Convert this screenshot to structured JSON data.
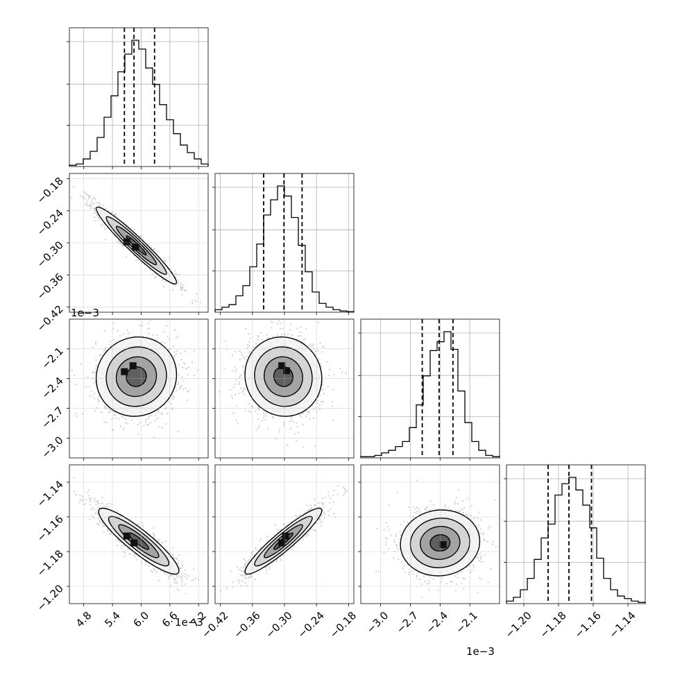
{
  "chart_data": {
    "type": "corner",
    "grid": true,
    "parameters": [
      {
        "range": [
          4.5,
          7.4
        ],
        "ticks": [
          4.8,
          5.4,
          6.0,
          6.6,
          7.2
        ],
        "tick_labels": [
          "4.8",
          "5.4",
          "6.0",
          "6.6",
          "7.2"
        ],
        "offset_label": "1e−3",
        "quantiles": [
          5.65,
          5.85,
          6.28
        ]
      },
      {
        "range": [
          -0.43,
          -0.17
        ],
        "ticks": [
          -0.42,
          -0.36,
          -0.3,
          -0.24,
          -0.18
        ],
        "tick_labels": [
          "−0.42",
          "−0.36",
          "−0.30",
          "−0.24",
          "−0.18"
        ],
        "offset_label": "1e−3",
        "quantiles": [
          -0.339,
          -0.301,
          -0.267
        ]
      },
      {
        "range": [
          -3.2,
          -1.8
        ],
        "ticks": [
          -3.0,
          -2.7,
          -2.4,
          -2.1
        ],
        "tick_labels": [
          "−3.0",
          "−2.7",
          "−2.4",
          "−2.1"
        ],
        "offset_label": "1e−3",
        "quantiles": [
          -2.58,
          -2.41,
          -2.27
        ]
      },
      {
        "range": [
          -1.21,
          -1.13
        ],
        "ticks": [
          -1.2,
          -1.18,
          -1.16,
          -1.14
        ],
        "tick_labels": [
          "−1.20",
          "−1.18",
          "−1.16",
          "−1.14"
        ],
        "offset_label": "",
        "quantiles": [
          -1.186,
          -1.174,
          -1.161
        ]
      }
    ],
    "histograms": [
      [
        0.01,
        0.02,
        0.06,
        0.12,
        0.23,
        0.39,
        0.56,
        0.75,
        0.89,
        1.0,
        0.93,
        0.78,
        0.65,
        0.49,
        0.37,
        0.26,
        0.17,
        0.11,
        0.06,
        0.02
      ],
      [
        0.02,
        0.04,
        0.06,
        0.13,
        0.21,
        0.36,
        0.54,
        0.77,
        0.89,
        1.0,
        0.92,
        0.75,
        0.53,
        0.32,
        0.16,
        0.07,
        0.04,
        0.02,
        0.01,
        0.005
      ],
      [
        0.01,
        0.01,
        0.02,
        0.04,
        0.06,
        0.09,
        0.13,
        0.24,
        0.42,
        0.65,
        0.85,
        0.92,
        1.0,
        0.86,
        0.53,
        0.28,
        0.13,
        0.06,
        0.02,
        0.01
      ],
      [
        0.02,
        0.05,
        0.11,
        0.2,
        0.35,
        0.52,
        0.63,
        0.86,
        0.95,
        1.0,
        0.9,
        0.78,
        0.6,
        0.36,
        0.2,
        0.11,
        0.06,
        0.04,
        0.02,
        0.01
      ]
    ],
    "pairs": [
      {
        "row": 1,
        "col": 0,
        "center": [
          5.9,
          -0.305
        ],
        "std": [
          0.42,
          0.036
        ],
        "rho": -0.96,
        "peaks": [
          [
            5.7,
            -0.298
          ],
          [
            5.88,
            -0.308
          ]
        ]
      },
      {
        "row": 2,
        "col": 0,
        "center": [
          5.9,
          -2.38
        ],
        "std": [
          0.42,
          0.2
        ],
        "rho": 0.05,
        "peaks": [
          [
            5.65,
            -2.33
          ],
          [
            5.83,
            -2.27
          ]
        ]
      },
      {
        "row": 2,
        "col": 1,
        "center": [
          -0.302,
          -2.38
        ],
        "std": [
          0.036,
          0.2
        ],
        "rho": -0.05,
        "peaks": [
          [
            -0.305,
            -2.27
          ],
          [
            -0.296,
            -2.32
          ]
        ]
      },
      {
        "row": 3,
        "col": 0,
        "center": [
          5.95,
          -1.174
        ],
        "std": [
          0.42,
          0.0095
        ],
        "rho": -0.9,
        "peaks": [
          [
            5.7,
            -1.171
          ],
          [
            5.85,
            -1.175
          ]
        ]
      },
      {
        "row": 3,
        "col": 1,
        "center": [
          -0.302,
          -1.174
        ],
        "std": [
          0.036,
          0.0095
        ],
        "rho": 0.93,
        "peaks": [
          [
            -0.305,
            -1.175
          ],
          [
            -0.298,
            -1.171
          ]
        ]
      },
      {
        "row": 3,
        "col": 2,
        "center": [
          -2.4,
          -1.175
        ],
        "std": [
          0.2,
          0.0095
        ],
        "rho": 0.05,
        "peaks": [
          [
            -2.37,
            -1.176
          ]
        ]
      }
    ]
  }
}
